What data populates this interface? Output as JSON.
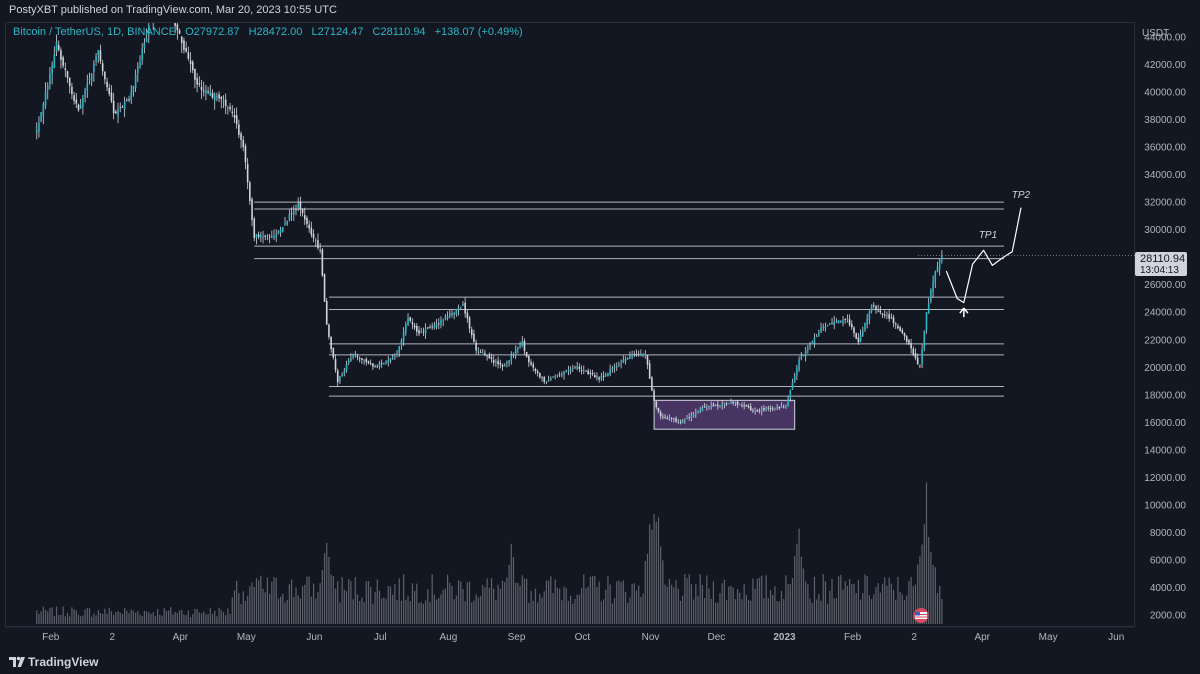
{
  "header": {
    "published_by": "PostyXBT published on TradingView.com, Mar 20, 2023 10:55 UTC"
  },
  "legend": {
    "symbol": "Bitcoin / TetherUS, 1D, BINANCE",
    "open": "O27972.87",
    "high": "H28472.00",
    "low": "L27124.47",
    "close": "C28110.94",
    "change": "+138.07 (+0.49%)"
  },
  "price_axis": {
    "currency": "USDT",
    "last_price": "28110.94",
    "countdown": "13:04:13"
  },
  "footer": {
    "brand": "TradingView"
  },
  "colors": {
    "background": "#131722",
    "candle": "#2bb6c4",
    "wick": "#d1d4dc",
    "level_line": "#b2b5be",
    "zone_fill": "#5b3f7a",
    "volume": "#787b86"
  },
  "icons": [
    "tradingview-logo-icon",
    "economic-events-flag-icon"
  ],
  "chart_data": {
    "type": "candlestick",
    "title": "",
    "ylabel": "USDT",
    "ylim": [
      1000,
      44500
    ],
    "yticks": [
      "2000.00",
      "4000.00",
      "6000.00",
      "8000.00",
      "10000.00",
      "12000.00",
      "14000.00",
      "16000.00",
      "18000.00",
      "20000.00",
      "22000.00",
      "24000.00",
      "26000.00",
      "28000.00",
      "30000.00",
      "32000.00",
      "34000.00",
      "36000.00",
      "38000.00",
      "40000.00",
      "42000.00",
      "44000.00"
    ],
    "xticks": [
      "Feb",
      "2",
      "Apr",
      "May",
      "Jun",
      "Jul",
      "Aug",
      "Sep",
      "Oct",
      "Nov",
      "Dec",
      "2023",
      "Feb",
      "2",
      "Apr",
      "May",
      "Jun"
    ],
    "bold_xtick": "2023",
    "price_path": [
      {
        "date": "2022-02-01",
        "price": 37000
      },
      {
        "date": "2022-02-10",
        "price": 43500
      },
      {
        "date": "2022-02-20",
        "price": 38500
      },
      {
        "date": "2022-03-01",
        "price": 43000
      },
      {
        "date": "2022-03-08",
        "price": 38500
      },
      {
        "date": "2022-03-15",
        "price": 39500
      },
      {
        "date": "2022-03-28",
        "price": 47000
      },
      {
        "date": "2022-04-05",
        "price": 45000
      },
      {
        "date": "2022-04-15",
        "price": 40500
      },
      {
        "date": "2022-04-25",
        "price": 39500
      },
      {
        "date": "2022-05-01",
        "price": 38500
      },
      {
        "date": "2022-05-06",
        "price": 36000
      },
      {
        "date": "2022-05-11",
        "price": 29500
      },
      {
        "date": "2022-05-20",
        "price": 29500
      },
      {
        "date": "2022-05-31",
        "price": 31800
      },
      {
        "date": "2022-06-05",
        "price": 30000
      },
      {
        "date": "2022-06-10",
        "price": 28500
      },
      {
        "date": "2022-06-13",
        "price": 23000
      },
      {
        "date": "2022-06-18",
        "price": 19000
      },
      {
        "date": "2022-06-25",
        "price": 21000
      },
      {
        "date": "2022-07-05",
        "price": 20000
      },
      {
        "date": "2022-07-15",
        "price": 21000
      },
      {
        "date": "2022-07-20",
        "price": 23500
      },
      {
        "date": "2022-07-25",
        "price": 22500
      },
      {
        "date": "2022-08-01",
        "price": 23000
      },
      {
        "date": "2022-08-14",
        "price": 24500
      },
      {
        "date": "2022-08-20",
        "price": 21300
      },
      {
        "date": "2022-09-01",
        "price": 20000
      },
      {
        "date": "2022-09-10",
        "price": 21800
      },
      {
        "date": "2022-09-13",
        "price": 20300
      },
      {
        "date": "2022-09-20",
        "price": 19000
      },
      {
        "date": "2022-10-05",
        "price": 20000
      },
      {
        "date": "2022-10-15",
        "price": 19200
      },
      {
        "date": "2022-10-29",
        "price": 20800
      },
      {
        "date": "2022-11-05",
        "price": 21000
      },
      {
        "date": "2022-11-09",
        "price": 17500
      },
      {
        "date": "2022-11-12",
        "price": 16500
      },
      {
        "date": "2022-11-21",
        "price": 16000
      },
      {
        "date": "2022-12-01",
        "price": 17000
      },
      {
        "date": "2022-12-15",
        "price": 17500
      },
      {
        "date": "2022-12-25",
        "price": 16800
      },
      {
        "date": "2023-01-08",
        "price": 17200
      },
      {
        "date": "2023-01-14",
        "price": 20500
      },
      {
        "date": "2023-01-25",
        "price": 23000
      },
      {
        "date": "2023-02-05",
        "price": 23500
      },
      {
        "date": "2023-02-10",
        "price": 21800
      },
      {
        "date": "2023-02-16",
        "price": 24500
      },
      {
        "date": "2023-02-25",
        "price": 23500
      },
      {
        "date": "2023-03-03",
        "price": 22300
      },
      {
        "date": "2023-03-10",
        "price": 20000
      },
      {
        "date": "2023-03-13",
        "price": 24000
      },
      {
        "date": "2023-03-17",
        "price": 27000
      },
      {
        "date": "2023-03-20",
        "price": 28110.94
      }
    ],
    "levels": [
      {
        "name": "resistance-upper-top",
        "price": 32000
      },
      {
        "name": "resistance-upper-bottom",
        "price": 31500
      },
      {
        "name": "resistance-mid-top",
        "price": 28800
      },
      {
        "name": "resistance-mid-bottom",
        "price": 27900
      },
      {
        "name": "support-1-top",
        "price": 25100
      },
      {
        "name": "support-1-bottom",
        "price": 24200
      },
      {
        "name": "support-2-top",
        "price": 21700
      },
      {
        "name": "support-2-bottom",
        "price": 20900
      },
      {
        "name": "support-3-top",
        "price": 18600
      },
      {
        "name": "support-3-bottom",
        "price": 17900
      }
    ],
    "zone": {
      "start": "2022-11-09",
      "end": "2023-01-12",
      "low": 15500,
      "high": 17600
    },
    "annotations": [
      {
        "text": "TP1",
        "date": "2023-04-10",
        "price": 29400
      },
      {
        "text": "TP2",
        "date": "2023-04-25",
        "price": 32300
      }
    ],
    "projection": [
      {
        "date": "2023-03-22",
        "price": 27000
      },
      {
        "date": "2023-03-27",
        "price": 25000
      },
      {
        "date": "2023-03-30",
        "price": 24700
      },
      {
        "date": "2023-04-03",
        "price": 27500
      },
      {
        "date": "2023-04-08",
        "price": 28500
      },
      {
        "date": "2023-04-12",
        "price": 27400
      },
      {
        "date": "2023-04-17",
        "price": 28000
      },
      {
        "date": "2023-04-21",
        "price": 28400
      },
      {
        "date": "2023-04-25",
        "price": 31600
      }
    ],
    "volume_peaks": [
      {
        "date": "2022-02-20",
        "value": 1000
      },
      {
        "date": "2022-05-12",
        "value": 4500
      },
      {
        "date": "2022-06-13",
        "value": 7500
      },
      {
        "date": "2022-09-05",
        "value": 6500
      },
      {
        "date": "2022-11-09",
        "value": 12000
      },
      {
        "date": "2023-01-14",
        "value": 8500
      },
      {
        "date": "2023-03-13",
        "value": 11500
      }
    ]
  }
}
